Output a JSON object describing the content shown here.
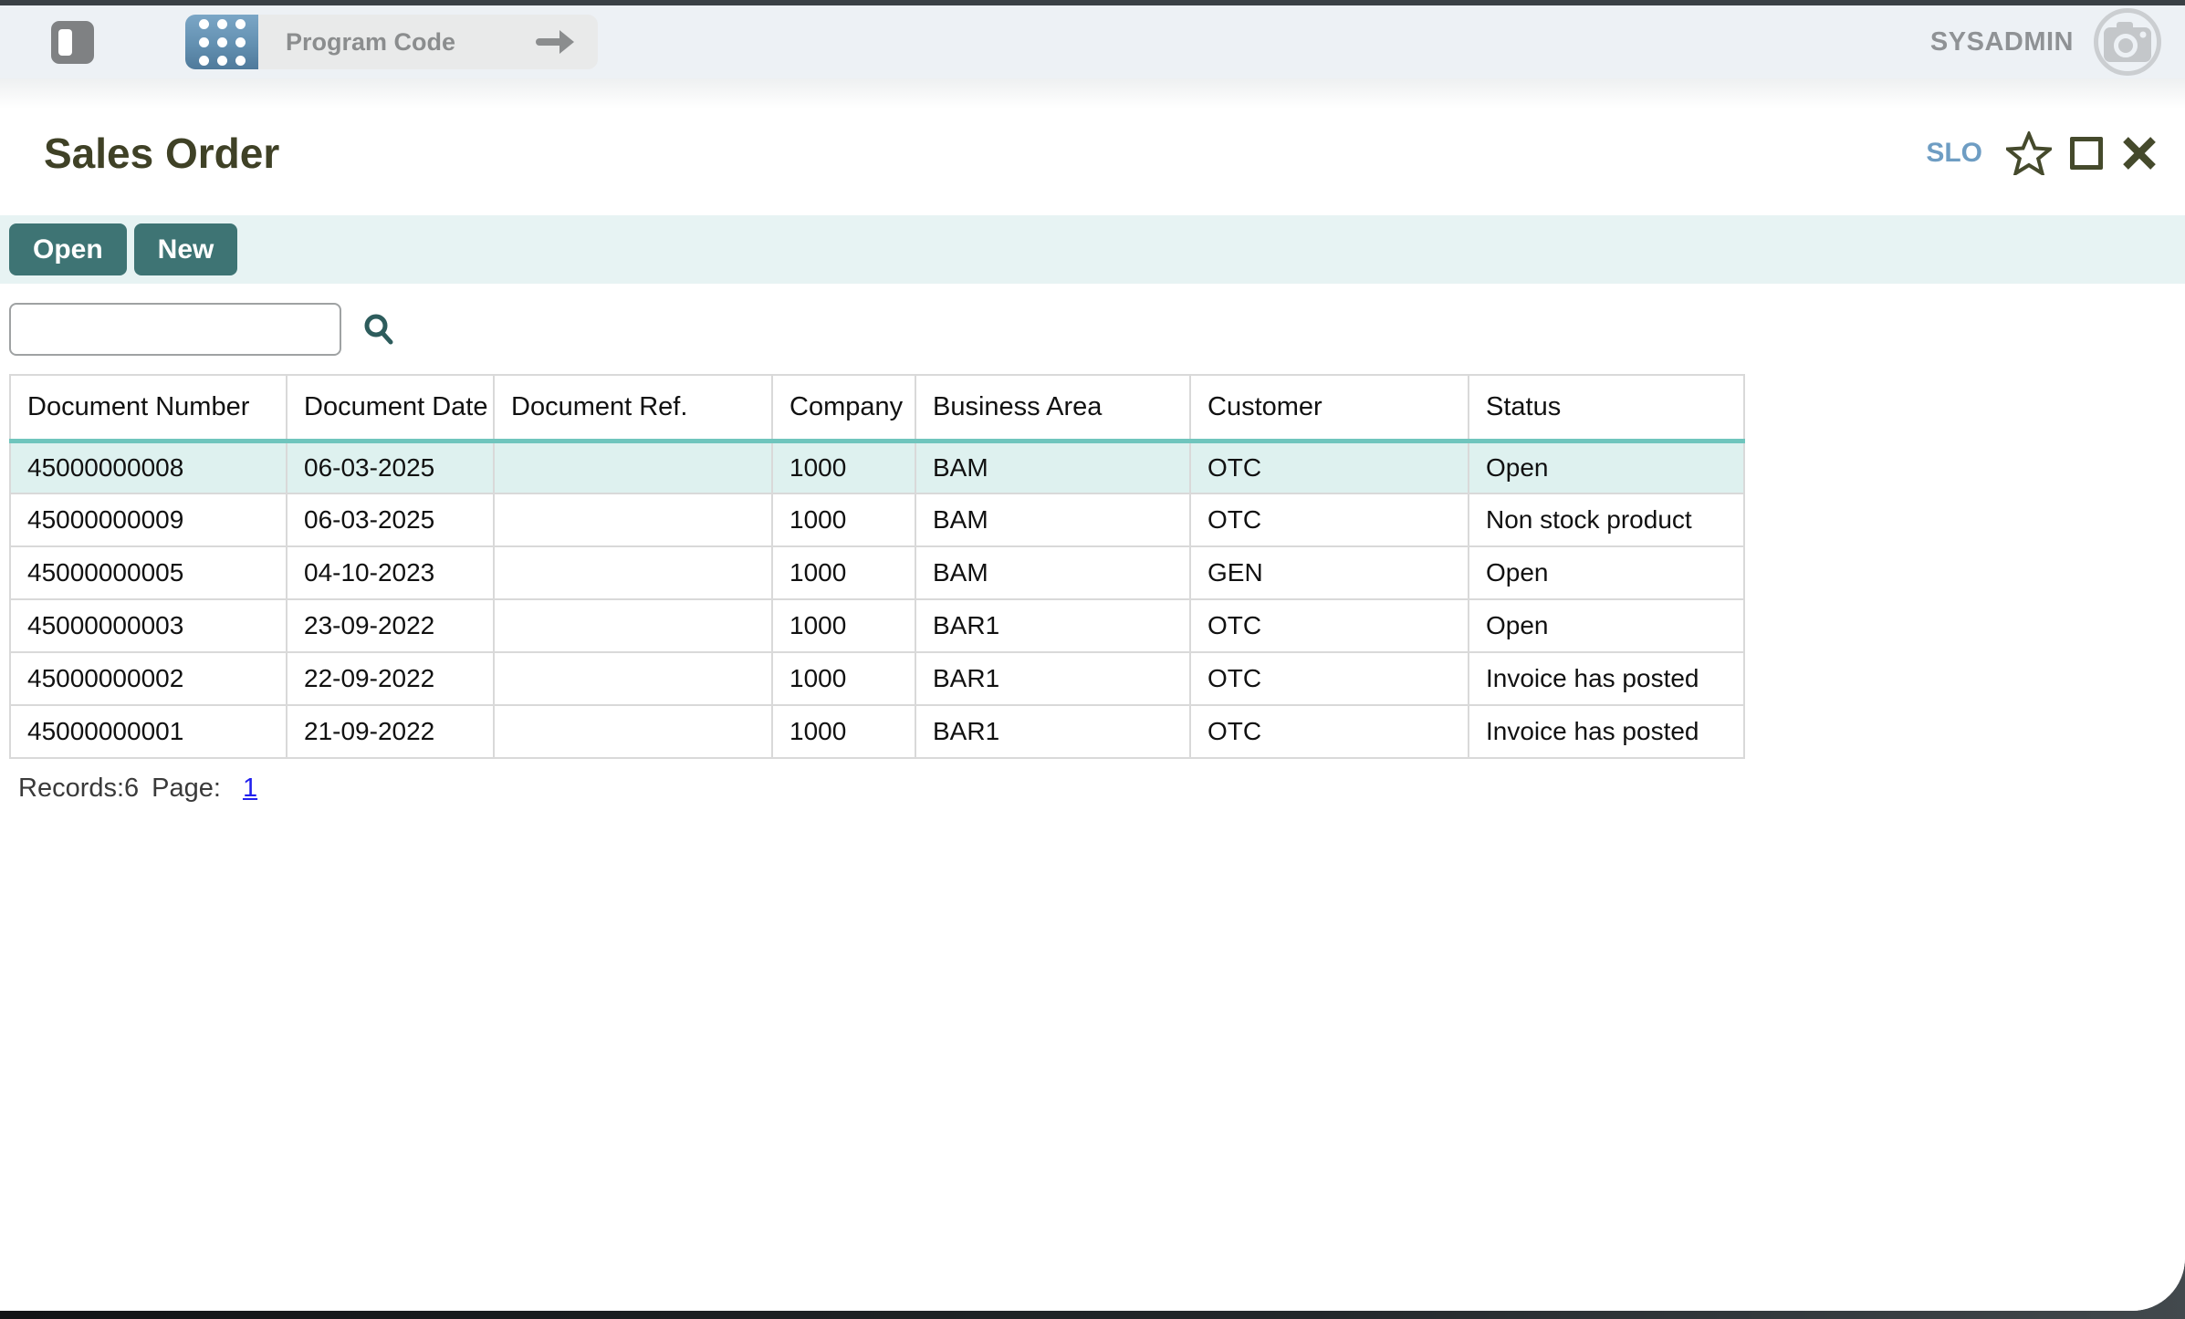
{
  "titlebar": {
    "program_code_label": "Program Code",
    "username": "SYSADMIN"
  },
  "page": {
    "title": "Sales Order",
    "code": "SLO"
  },
  "toolbar": {
    "open_label": "Open",
    "new_label": "New"
  },
  "search": {
    "value": "",
    "placeholder": ""
  },
  "table": {
    "columns": [
      "Document Number",
      "Document Date",
      "Document Ref.",
      "Company",
      "Business Area",
      "Customer",
      "Status"
    ],
    "rows": [
      [
        "45000000008",
        "06-03-2025",
        "",
        "1000",
        "BAM",
        "OTC",
        "Open"
      ],
      [
        "45000000009",
        "06-03-2025",
        "",
        "1000",
        "BAM",
        "OTC",
        "Non stock product"
      ],
      [
        "45000000005",
        "04-10-2023",
        "",
        "1000",
        "BAM",
        "GEN",
        "Open"
      ],
      [
        "45000000003",
        "23-09-2022",
        "",
        "1000",
        "BAR1",
        "OTC",
        "Open"
      ],
      [
        "45000000002",
        "22-09-2022",
        "",
        "1000",
        "BAR1",
        "OTC",
        "Invoice has posted"
      ],
      [
        "45000000001",
        "21-09-2022",
        "",
        "1000",
        "BAR1",
        "OTC",
        "Invoice has posted"
      ]
    ],
    "selected_row_index": 0
  },
  "pagination": {
    "records_label": "Records:6",
    "page_label": "Page:",
    "pages": [
      "1"
    ]
  },
  "icons": {
    "sidebar_toggle": "sidebar-toggle-icon",
    "app_grid": "app-grid-icon",
    "go_arrow": "arrow-right-icon",
    "avatar_camera": "camera-icon",
    "favorite": "star-icon",
    "maximize": "square-icon",
    "close": "close-icon",
    "search": "search-icon"
  },
  "colors": {
    "accent_teal": "#3e7474",
    "toolbar_bg": "#e7f3f3",
    "selected_row_bg": "#def1ef",
    "header_underline": "#6fc5bd",
    "title_olive": "#3f4126",
    "page_code_blue": "#6e9dc3",
    "link_blue": "#2120ee",
    "topbar_bg": "#edf1f5",
    "pill_icon_blue": "#6390b1"
  }
}
